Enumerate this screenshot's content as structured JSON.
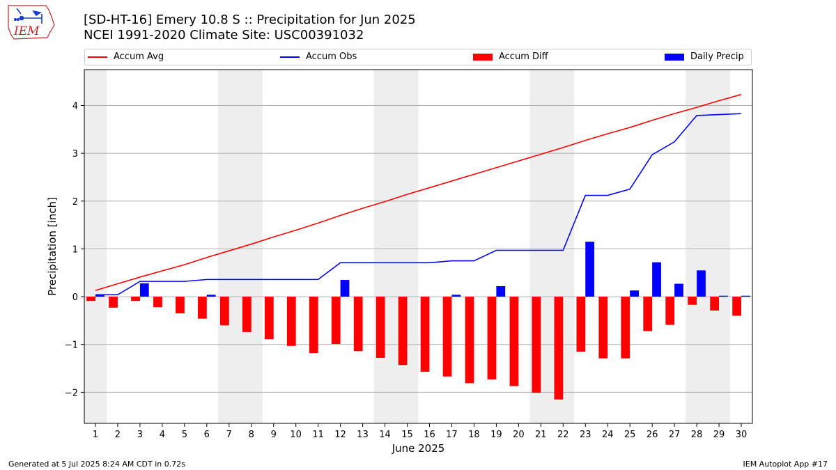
{
  "header": {
    "title": "[SD-HT-16] Emery 10.8 S :: Precipitation for Jun 2025",
    "subtitle": "NCEI 1991-2020 Climate Site: USC00391032"
  },
  "logo": {
    "text": "IEM",
    "colors": {
      "outline": "#c62828",
      "icon": "#1a3ccc"
    }
  },
  "footer": {
    "left": "Generated at 5 Jul 2025 8:24 AM CDT in 0.72s",
    "right": "IEM Autoplot App #17"
  },
  "chart_data": {
    "type": "bar",
    "xlabel": "June 2025",
    "ylabel": "Precipitation [inch]",
    "ylim": [
      -2.65,
      4.75
    ],
    "y_ticks": [
      -2,
      -1,
      0,
      1,
      2,
      3,
      4
    ],
    "grid": true,
    "legend_position": "top",
    "days": [
      1,
      2,
      3,
      4,
      5,
      6,
      7,
      8,
      9,
      10,
      11,
      12,
      13,
      14,
      15,
      16,
      17,
      18,
      19,
      20,
      21,
      22,
      23,
      24,
      25,
      26,
      27,
      28,
      29,
      30
    ],
    "weekend_days": [
      1,
      7,
      8,
      14,
      15,
      21,
      22,
      28,
      29
    ],
    "series": [
      {
        "name": "Accum Avg",
        "kind": "line",
        "color": "#ff0000",
        "values": [
          0.13,
          0.27,
          0.41,
          0.54,
          0.67,
          0.82,
          0.96,
          1.1,
          1.25,
          1.39,
          1.54,
          1.7,
          1.85,
          1.99,
          2.14,
          2.28,
          2.42,
          2.56,
          2.7,
          2.84,
          2.98,
          3.12,
          3.27,
          3.41,
          3.54,
          3.69,
          3.83,
          3.96,
          4.1,
          4.23
        ]
      },
      {
        "name": "Accum Obs",
        "kind": "line",
        "color": "#0000ff",
        "values": [
          0.04,
          0.04,
          0.32,
          0.32,
          0.32,
          0.36,
          0.36,
          0.36,
          0.36,
          0.36,
          0.36,
          0.71,
          0.71,
          0.71,
          0.71,
          0.71,
          0.75,
          0.75,
          0.97,
          0.97,
          0.97,
          0.97,
          2.12,
          2.12,
          2.25,
          2.97,
          3.24,
          3.79,
          3.81,
          3.83
        ]
      },
      {
        "name": "Accum Diff",
        "kind": "bar",
        "color": "#ff0000",
        "values": [
          -0.09,
          -0.23,
          -0.09,
          -0.22,
          -0.35,
          -0.46,
          -0.6,
          -0.74,
          -0.89,
          -1.03,
          -1.18,
          -0.99,
          -1.14,
          -1.28,
          -1.43,
          -1.57,
          -1.67,
          -1.81,
          -1.73,
          -1.87,
          -2.01,
          -2.15,
          -1.15,
          -1.29,
          -1.29,
          -0.72,
          -0.59,
          -0.17,
          -0.29,
          -0.4
        ]
      },
      {
        "name": "Daily Precip",
        "kind": "bar",
        "color": "#0000ff",
        "values": [
          0.04,
          0.0,
          0.28,
          0.0,
          0.0,
          0.04,
          0.0,
          0.0,
          0.0,
          0.0,
          0.0,
          0.35,
          0.0,
          0.0,
          0.0,
          0.0,
          0.04,
          0.0,
          0.22,
          0.0,
          0.0,
          0.0,
          1.15,
          0.0,
          0.13,
          0.72,
          0.27,
          0.55,
          0.02,
          0.02
        ]
      }
    ]
  }
}
